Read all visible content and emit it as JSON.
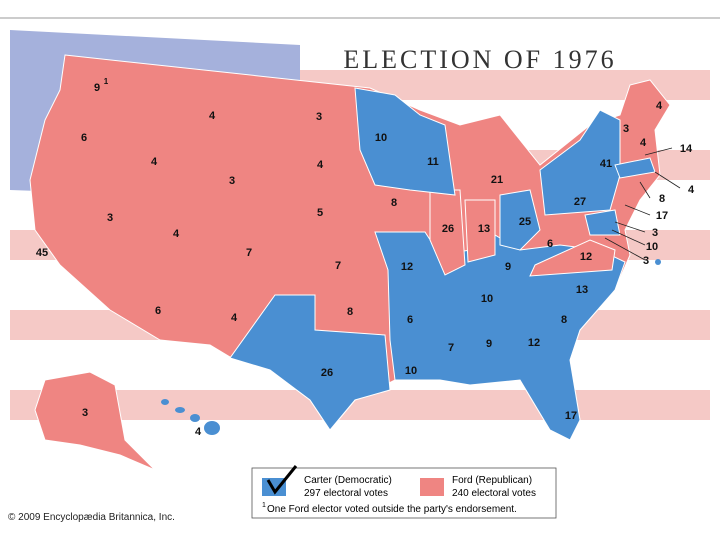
{
  "title": "ELECTION OF 1976",
  "labels": [
    9,
    6,
    45,
    4,
    3,
    4,
    3,
    4,
    6,
    7,
    4,
    3,
    4,
    5,
    7,
    8,
    26,
    10,
    8,
    12,
    6,
    10,
    11,
    26,
    21,
    13,
    25,
    9,
    10,
    7,
    9,
    12,
    17,
    8,
    13,
    12,
    6,
    27,
    41,
    3,
    4,
    4,
    14,
    4,
    8,
    17,
    3,
    10,
    3,
    3,
    4
  ],
  "legend": {
    "carter": {
      "name": "Carter (Democratic)",
      "votes": "297 electoral votes"
    },
    "ford": {
      "name": "Ford (Republican)",
      "votes": "240 electoral votes"
    }
  },
  "footnote": {
    "marker": "1",
    "text": "One Ford elector voted outside the party's endorsement."
  },
  "credit": "© 2009 Encyclopædia Britannica, Inc."
}
